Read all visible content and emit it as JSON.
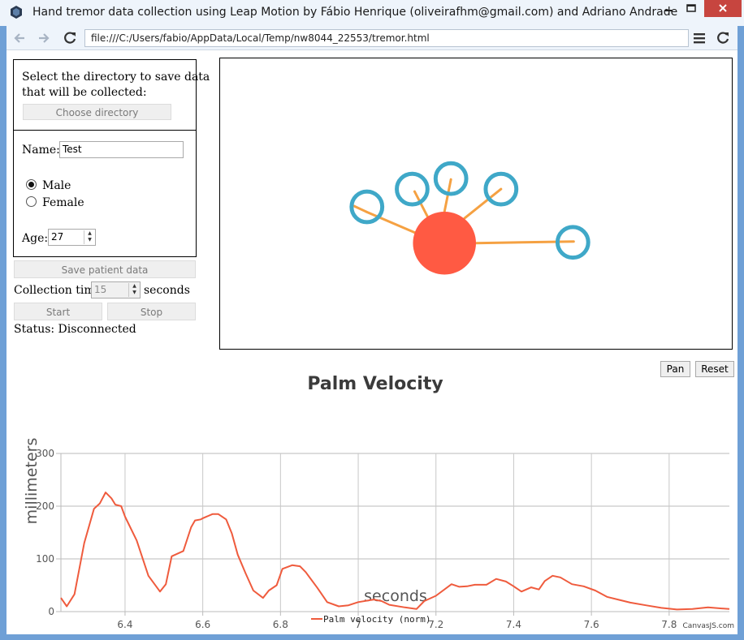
{
  "window": {
    "title": "Hand tremor data collection using Leap Motion by Fábio Henrique (oliveirafhm@gmail.com) and Adriano Andrade"
  },
  "browser": {
    "url": "file:///C:/Users/fabio/AppData/Local/Temp/nw8044_22553/tremor.html"
  },
  "directory_panel": {
    "prompt_line1": "Select the directory to save data",
    "prompt_line2": "that will be collected:",
    "choose_label": "Choose directory"
  },
  "patient": {
    "name_label": "Name:",
    "name_value": "Test",
    "gender_options": [
      "Male",
      "Female"
    ],
    "gender_selected": "Male",
    "age_label": "Age:",
    "age_value": "27",
    "save_label": "Save patient data"
  },
  "collection": {
    "time_label": "Collection time:",
    "time_value": "15",
    "unit": "seconds",
    "start_label": "Start",
    "stop_label": "Stop",
    "status_text": "Status: Disconnected"
  },
  "hand_view": {
    "palm_color": "#ff5a43",
    "finger_color": "#f5a142",
    "tip_color": "#3fa8c8"
  },
  "chart_controls": {
    "pan_label": "Pan",
    "reset_label": "Reset"
  },
  "chart_data": {
    "type": "line",
    "title": "Palm Velocity",
    "xlabel": "seconds",
    "ylabel": "millimeters",
    "xlim": [
      6.235,
      7.955
    ],
    "ylim": [
      0,
      300
    ],
    "xticks": [
      "6.4",
      "6.6",
      "6.8",
      "7",
      "7.2",
      "7.4",
      "7.6",
      "7.8"
    ],
    "xtick_values": [
      6.4,
      6.6,
      6.8,
      7.0,
      7.2,
      7.4,
      7.6,
      7.8
    ],
    "yticks": [
      0,
      100,
      200,
      300
    ],
    "grid": true,
    "legend_position": "bottom",
    "credit": "CanvasJS.com",
    "series": [
      {
        "name": "Palm velocity (norm)",
        "color": "#ef5b3d",
        "x": [
          6.235,
          6.25,
          6.27,
          6.295,
          6.32,
          6.335,
          6.35,
          6.365,
          6.375,
          6.39,
          6.4,
          6.43,
          6.46,
          6.49,
          6.505,
          6.52,
          6.55,
          6.57,
          6.58,
          6.595,
          6.6,
          6.625,
          6.64,
          6.66,
          6.675,
          6.69,
          6.71,
          6.73,
          6.755,
          6.77,
          6.79,
          6.805,
          6.83,
          6.85,
          6.865,
          6.895,
          6.92,
          6.95,
          6.975,
          7.0,
          7.04,
          7.06,
          7.08,
          7.12,
          7.15,
          7.17,
          7.2,
          7.24,
          7.26,
          7.28,
          7.3,
          7.33,
          7.355,
          7.38,
          7.4,
          7.42,
          7.445,
          7.465,
          7.48,
          7.5,
          7.52,
          7.55,
          7.58,
          7.61,
          7.64,
          7.7,
          7.74,
          7.78,
          7.82,
          7.86,
          7.9,
          7.955
        ],
        "y": [
          26,
          10,
          33,
          130,
          195,
          205,
          226,
          215,
          203,
          200,
          180,
          135,
          68,
          38,
          52,
          105,
          115,
          160,
          173,
          175,
          177,
          185,
          185,
          175,
          148,
          108,
          73,
          40,
          26,
          40,
          50,
          81,
          88,
          86,
          75,
          45,
          18,
          10,
          12,
          18,
          23,
          20,
          13,
          8,
          5,
          20,
          30,
          52,
          47,
          48,
          51,
          51,
          62,
          57,
          48,
          38,
          46,
          42,
          58,
          68,
          65,
          52,
          48,
          40,
          28,
          17,
          12,
          7,
          4,
          5,
          8,
          5
        ]
      }
    ]
  }
}
